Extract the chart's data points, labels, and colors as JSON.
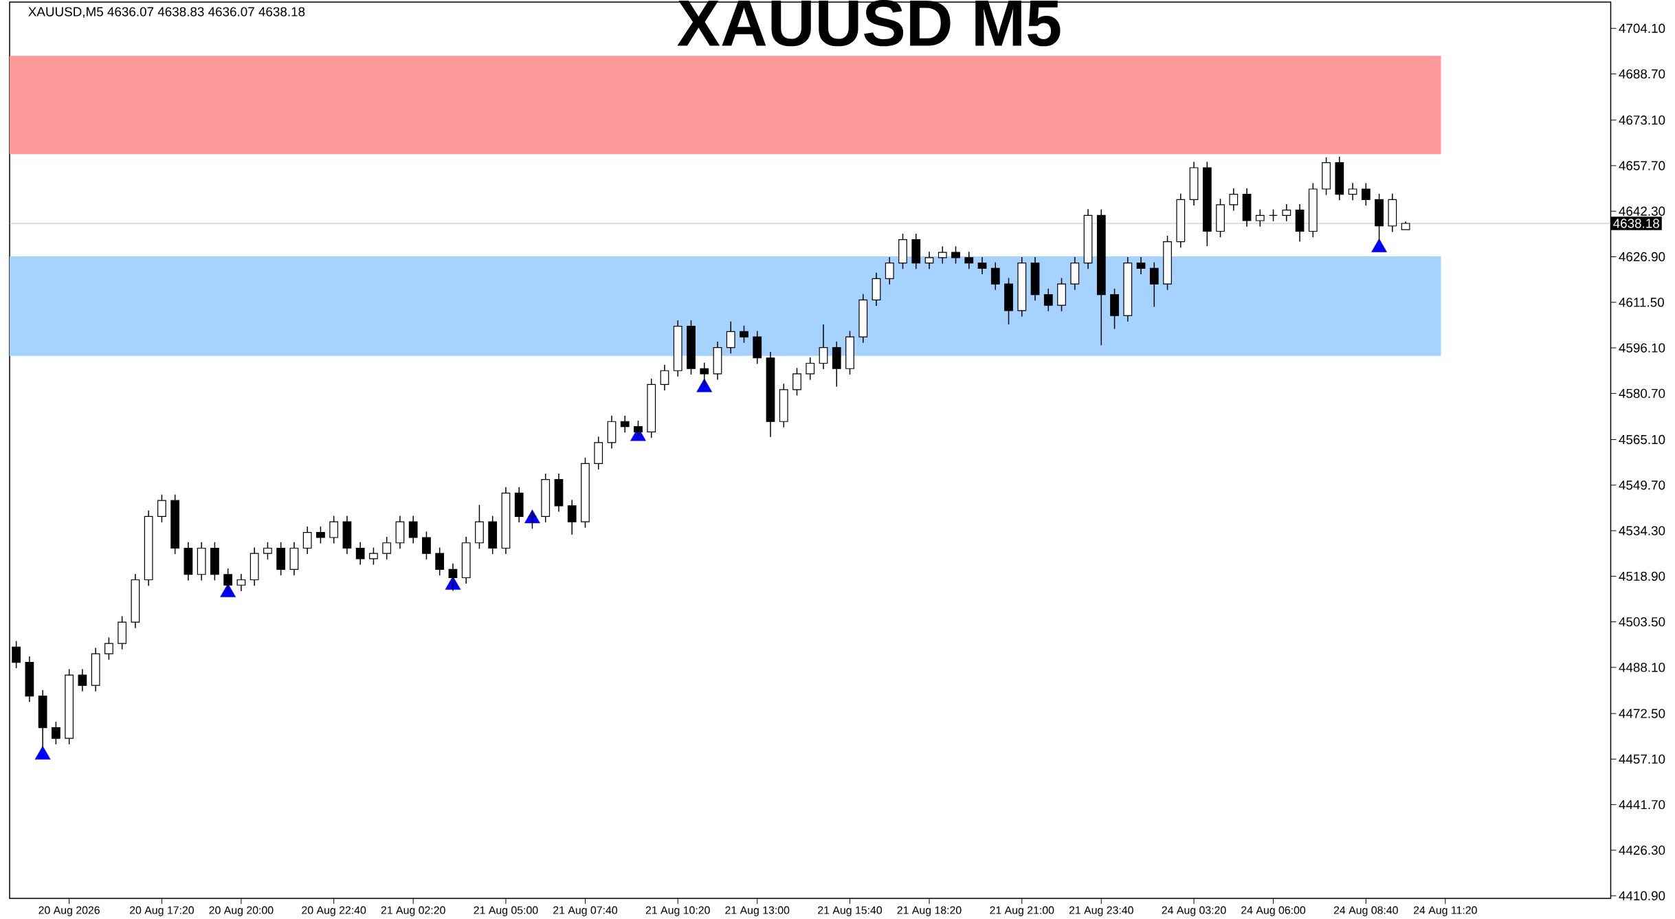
{
  "chart_data": {
    "type": "candlestick",
    "title": "XAUUSD M5",
    "annotations": [
      "XAUUSD,M5  4636.07 4638.83 4636.07 4638.18"
    ],
    "categories": [
      null,
      null,
      null,
      null,
      "20 Aug 2026",
      null,
      null,
      null,
      null,
      null,
      null,
      "20 Aug 17:20",
      null,
      null,
      null,
      null,
      null,
      "20 Aug 20:00",
      null,
      null,
      null,
      null,
      null,
      null,
      "20 Aug 22:40",
      null,
      null,
      null,
      null,
      null,
      "21 Aug 02:20",
      null,
      null,
      null,
      null,
      null,
      null,
      "21 Aug 05:00",
      null,
      null,
      null,
      null,
      null,
      "21 Aug 07:40",
      null,
      null,
      null,
      null,
      null,
      null,
      "21 Aug 10:20",
      null,
      null,
      null,
      null,
      null,
      "21 Aug 13:00",
      null,
      null,
      null,
      null,
      null,
      null,
      "21 Aug 15:40",
      null,
      null,
      null,
      null,
      null,
      "21 Aug 18:20",
      null,
      null,
      null,
      null,
      null,
      null,
      "21 Aug 21:00",
      null,
      null,
      null,
      null,
      null,
      "21 Aug 23:40",
      null,
      null,
      null,
      null,
      null,
      null,
      "24 Aug 03:20",
      null,
      null,
      null,
      null,
      null,
      "24 Aug 06:00",
      null,
      null,
      null,
      null,
      null,
      null,
      "24 Aug 08:40",
      null,
      null,
      null,
      null,
      null,
      "24 Aug 11:20",
      null,
      null,
      null,
      null,
      null,
      null,
      null,
      null,
      null,
      null,
      null,
      null
    ],
    "ohlc": [
      [
        4495.0,
        4497.0,
        4487.8,
        4489.8
      ],
      [
        4489.8,
        4491.8,
        4476.4,
        4478.4
      ],
      [
        4478.4,
        4480.4,
        4461.0,
        4467.7
      ],
      [
        4467.7,
        4469.7,
        4462.1,
        4464.1
      ],
      [
        4464.1,
        4487.5,
        4462.1,
        4485.5
      ],
      [
        4485.5,
        4487.5,
        4480.0,
        4482.0
      ],
      [
        4482.0,
        4494.7,
        4480.0,
        4492.7
      ],
      [
        4492.7,
        4498.2,
        4490.7,
        4496.2
      ],
      [
        4496.2,
        4505.4,
        4494.2,
        4503.4
      ],
      [
        4503.4,
        4519.7,
        4501.4,
        4517.7
      ],
      [
        4517.7,
        4541.1,
        4515.7,
        4539.1
      ],
      [
        4539.1,
        4546.5,
        4537.1,
        4544.5
      ],
      [
        4544.5,
        4546.5,
        4526.4,
        4528.4
      ],
      [
        4528.4,
        4530.4,
        4517.5,
        4519.5
      ],
      [
        4519.5,
        4530.4,
        4517.5,
        4528.4
      ],
      [
        4528.4,
        4530.4,
        4517.5,
        4519.5
      ],
      [
        4519.5,
        4521.5,
        4513.9,
        4515.9
      ],
      [
        4515.9,
        4519.7,
        4513.9,
        4517.7
      ],
      [
        4517.7,
        4528.6,
        4515.7,
        4526.6
      ],
      [
        4526.6,
        4530.4,
        4524.6,
        4528.4
      ],
      [
        4528.4,
        4530.4,
        4519.2,
        4521.2
      ],
      [
        4521.2,
        4530.4,
        4519.2,
        4528.4
      ],
      [
        4528.4,
        4535.7,
        4526.4,
        4533.7
      ],
      [
        4533.7,
        4535.7,
        4530.0,
        4532.0
      ],
      [
        4532.0,
        4539.3,
        4530.0,
        4537.3
      ],
      [
        4537.3,
        4539.3,
        4526.4,
        4528.4
      ],
      [
        4528.4,
        4530.4,
        4522.8,
        4524.8
      ],
      [
        4524.8,
        4528.6,
        4522.8,
        4526.6
      ],
      [
        4526.6,
        4532.2,
        4524.6,
        4530.2
      ],
      [
        4530.2,
        4539.3,
        4528.2,
        4537.3
      ],
      [
        4537.3,
        4539.3,
        4530.0,
        4532.0
      ],
      [
        4532.0,
        4534.0,
        4524.6,
        4526.6
      ],
      [
        4526.6,
        4528.6,
        4519.2,
        4521.2
      ],
      [
        4521.2,
        4523.2,
        4514.0,
        4518.4
      ],
      [
        4518.4,
        4532.2,
        4516.4,
        4530.2
      ],
      [
        4530.2,
        4543.0,
        4528.2,
        4537.3
      ],
      [
        4537.3,
        4539.3,
        4526.4,
        4528.4
      ],
      [
        4528.4,
        4549.0,
        4526.4,
        4547.0
      ],
      [
        4547.0,
        4549.0,
        4537.1,
        4539.1
      ],
      [
        4539.1,
        4541.1,
        4535.0,
        4539.1
      ],
      [
        4539.1,
        4553.6,
        4537.1,
        4551.6
      ],
      [
        4551.6,
        4553.6,
        4540.7,
        4542.7
      ],
      [
        4542.7,
        4544.7,
        4533.0,
        4537.3
      ],
      [
        4537.3,
        4559.0,
        4535.3,
        4557.0
      ],
      [
        4557.0,
        4566.1,
        4555.0,
        4564.1
      ],
      [
        4564.1,
        4573.2,
        4562.1,
        4571.2
      ],
      [
        4571.2,
        4573.2,
        4567.5,
        4569.5
      ],
      [
        4569.5,
        4571.5,
        4565.7,
        4567.7
      ],
      [
        4567.7,
        4585.7,
        4565.7,
        4583.7
      ],
      [
        4583.7,
        4590.4,
        4581.7,
        4588.4
      ],
      [
        4588.4,
        4605.4,
        4586.4,
        4603.4
      ],
      [
        4603.4,
        4605.4,
        4587.1,
        4589.1
      ],
      [
        4589.1,
        4591.1,
        4583.0,
        4587.3
      ],
      [
        4587.3,
        4598.2,
        4585.3,
        4596.2
      ],
      [
        4596.2,
        4605.0,
        4594.2,
        4601.6
      ],
      [
        4601.6,
        4603.6,
        4597.8,
        4599.8
      ],
      [
        4599.8,
        4601.8,
        4590.7,
        4592.7
      ],
      [
        4592.7,
        4594.7,
        4566.0,
        4571.2
      ],
      [
        4571.2,
        4584.0,
        4569.2,
        4582.0
      ],
      [
        4582.0,
        4589.3,
        4580.0,
        4587.3
      ],
      [
        4587.3,
        4592.9,
        4585.3,
        4590.9
      ],
      [
        4590.9,
        4604.0,
        4588.9,
        4596.2
      ],
      [
        4596.2,
        4598.2,
        4583.0,
        4589.1
      ],
      [
        4589.1,
        4601.8,
        4587.1,
        4599.8
      ],
      [
        4599.8,
        4614.3,
        4597.8,
        4612.3
      ],
      [
        4612.3,
        4621.5,
        4610.3,
        4619.5
      ],
      [
        4619.5,
        4626.8,
        4617.5,
        4624.8
      ],
      [
        4624.8,
        4634.7,
        4622.8,
        4632.7
      ],
      [
        4632.7,
        4634.7,
        4622.8,
        4624.8
      ],
      [
        4624.8,
        4628.6,
        4622.8,
        4626.6
      ],
      [
        4626.6,
        4630.4,
        4624.6,
        4628.4
      ],
      [
        4628.4,
        4630.4,
        4624.6,
        4626.6
      ],
      [
        4626.6,
        4628.6,
        4622.8,
        4624.8
      ],
      [
        4624.8,
        4626.8,
        4621.0,
        4623.0
      ],
      [
        4623.0,
        4625.0,
        4615.7,
        4617.7
      ],
      [
        4617.7,
        4619.7,
        4604.0,
        4608.7
      ],
      [
        4608.7,
        4626.8,
        4606.7,
        4624.8
      ],
      [
        4624.8,
        4626.8,
        4612.1,
        4614.1
      ],
      [
        4614.1,
        4616.1,
        4608.5,
        4610.5
      ],
      [
        4610.5,
        4619.7,
        4608.5,
        4617.7
      ],
      [
        4617.7,
        4626.8,
        4615.7,
        4624.8
      ],
      [
        4624.8,
        4643.0,
        4622.8,
        4640.9
      ],
      [
        4640.9,
        4642.9,
        4597.0,
        4614.1
      ],
      [
        4614.1,
        4616.1,
        4602.5,
        4607.0
      ],
      [
        4607.0,
        4626.8,
        4605.0,
        4624.8
      ],
      [
        4624.8,
        4626.8,
        4621.0,
        4623.0
      ],
      [
        4623.0,
        4625.0,
        4610.0,
        4617.7
      ],
      [
        4617.7,
        4634.0,
        4615.7,
        4632.0
      ],
      [
        4632.0,
        4648.2,
        4630.0,
        4646.2
      ],
      [
        4646.2,
        4659.0,
        4644.2,
        4657.0
      ],
      [
        4657.0,
        4659.0,
        4630.5,
        4635.5
      ],
      [
        4635.5,
        4646.5,
        4633.5,
        4644.5
      ],
      [
        4644.5,
        4650.0,
        4642.5,
        4648.0
      ],
      [
        4648.0,
        4650.0,
        4637.1,
        4639.1
      ],
      [
        4639.1,
        4642.9,
        4637.1,
        4640.9
      ],
      [
        4640.9,
        4642.9,
        4638.9,
        4640.9
      ],
      [
        4640.9,
        4644.7,
        4638.9,
        4642.7
      ],
      [
        4642.7,
        4644.7,
        4632.0,
        4635.5
      ],
      [
        4635.5,
        4651.8,
        4633.5,
        4649.8
      ],
      [
        4649.8,
        4660.5,
        4647.8,
        4658.7
      ],
      [
        4658.7,
        4660.7,
        4646.0,
        4648.0
      ],
      [
        4648.0,
        4651.8,
        4646.0,
        4649.8
      ],
      [
        4649.8,
        4651.8,
        4644.2,
        4646.2
      ],
      [
        4646.2,
        4648.2,
        4632.5,
        4637.3
      ],
      [
        4637.3,
        4648.2,
        4635.3,
        4646.2
      ],
      [
        4636.07,
        4638.83,
        4636.07,
        4638.18
      ],
      null,
      null,
      null,
      null,
      null,
      null,
      null,
      null,
      null,
      null,
      null,
      null,
      null,
      null,
      null
    ],
    "series": [
      {
        "type": "scatter",
        "color": "#0000ff",
        "marker": "triangle",
        "values": [
          null,
          null,
          4458.5,
          null,
          null,
          null,
          null,
          null,
          null,
          null,
          null,
          null,
          null,
          null,
          null,
          null,
          4513.4,
          null,
          null,
          null,
          null,
          null,
          null,
          null,
          null,
          null,
          null,
          null,
          null,
          null,
          null,
          null,
          null,
          4515.9,
          null,
          null,
          null,
          null,
          null,
          4538.4,
          null,
          null,
          null,
          null,
          null,
          null,
          null,
          4566.2,
          null,
          null,
          null,
          null,
          4582.7,
          null,
          null,
          null,
          null,
          null,
          null,
          null,
          null,
          null,
          null,
          null,
          null,
          null,
          null,
          null,
          null,
          null,
          null,
          null,
          null,
          null,
          null,
          null,
          null,
          null,
          null,
          null,
          null,
          null,
          null,
          null,
          null,
          null,
          null,
          null,
          null,
          null,
          null,
          null,
          null,
          null,
          null,
          null,
          null,
          null,
          null,
          null,
          null,
          null,
          null,
          4630.0,
          null,
          null,
          null,
          null,
          null,
          null,
          null,
          null,
          null,
          null,
          null,
          null,
          null,
          null,
          null,
          null,
          null
        ]
      }
    ],
    "ylim": [
      4410.0,
      4713.0
    ],
    "yticks": [
      {
        "value": 4410.9,
        "label": "4410.90"
      },
      {
        "value": 4426.3,
        "label": "4426.30"
      },
      {
        "value": 4441.7,
        "label": "4441.70"
      },
      {
        "value": 4457.1,
        "label": "4457.10"
      },
      {
        "value": 4472.5,
        "label": "4472.50"
      },
      {
        "value": 4488.1,
        "label": "4488.10"
      },
      {
        "value": 4503.5,
        "label": "4503.50"
      },
      {
        "value": 4518.9,
        "label": "4518.90"
      },
      {
        "value": 4534.3,
        "label": "4534.30"
      },
      {
        "value": 4549.7,
        "label": "4549.70"
      },
      {
        "value": 4565.1,
        "label": "4565.10"
      },
      {
        "value": 4580.7,
        "label": "4580.70"
      },
      {
        "value": 4596.1,
        "label": "4596.10"
      },
      {
        "value": 4611.5,
        "label": "4611.50"
      },
      {
        "value": 4626.9,
        "label": "4626.90"
      },
      {
        "value": 4642.3,
        "label": "4642.30"
      },
      {
        "value": 4657.7,
        "label": "4657.70"
      },
      {
        "value": 4673.1,
        "label": "4673.10"
      },
      {
        "value": 4688.7,
        "label": "4688.70"
      },
      {
        "value": 4704.1,
        "label": "4704.10"
      }
    ],
    "bands": [
      {
        "axis": "y",
        "from": 4661.6,
        "to": 4694.8,
        "color": "#ff9999"
      },
      {
        "axis": "y",
        "from": 4593.4,
        "to": 4627.0,
        "color": "#a6d2ff"
      }
    ],
    "ref_lines": [
      {
        "axis": "y",
        "value": 4638.18,
        "label": "4638.18",
        "color": "#c0c0c0"
      }
    ]
  }
}
